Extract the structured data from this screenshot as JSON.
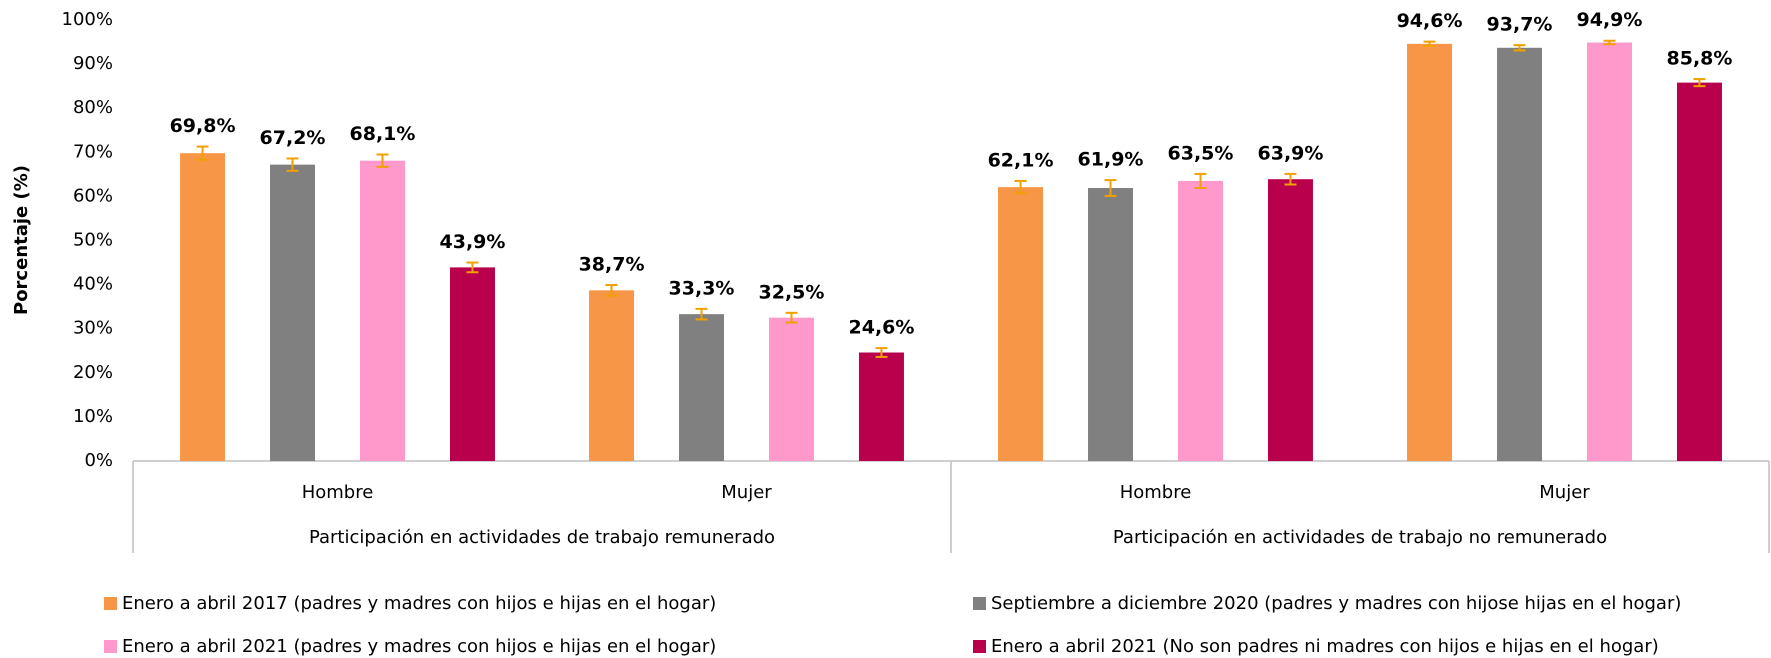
{
  "chart_data": {
    "type": "bar",
    "y_label": "Porcentaje (%)",
    "categories": [
      "Hombre",
      "Mujer",
      "Hombre",
      "Mujer"
    ],
    "groups": [
      "Participación en actividades de trabajo remunerado",
      "Participación en actividades de trabajo no remunerado"
    ],
    "series": [
      {
        "name": "Enero a abril 2017 (padres y madres con hijos e hijas en el hogar)",
        "color": "#f79646",
        "values": [
          69.8,
          38.7,
          62.1,
          94.6
        ],
        "value_labels": [
          "69,8%",
          "38,7%",
          "62,1%",
          "94,6%"
        ],
        "errors": [
          1.5,
          1.2,
          1.4,
          0.5
        ]
      },
      {
        "name": "Septiembre a diciembre 2020 (padres y madres con hijose hijas en el hogar)",
        "color": "#808080",
        "values": [
          67.2,
          33.3,
          61.9,
          93.7
        ],
        "value_labels": [
          "67,2%",
          "33,3%",
          "61,9%",
          "93,7%"
        ],
        "errors": [
          1.4,
          1.2,
          1.8,
          0.6
        ]
      },
      {
        "name": "Enero a abril 2021 (padres y madres con hijos e hijas en el hogar)",
        "color": "#ff99cc",
        "values": [
          68.1,
          32.5,
          63.5,
          94.9
        ],
        "value_labels": [
          "68,1%",
          "32,5%",
          "63,5%",
          "94,9%"
        ],
        "errors": [
          1.4,
          1.1,
          1.6,
          0.4
        ]
      },
      {
        "name": "Enero a abril 2021 (No son padres ni madres con hijos e hijas en el hogar)",
        "color": "#b8004c",
        "values": [
          43.9,
          24.6,
          63.9,
          85.8
        ],
        "value_labels": [
          "43,9%",
          "24,6%",
          "63,9%",
          "85,8%"
        ],
        "errors": [
          1.1,
          1.0,
          1.2,
          0.8
        ]
      }
    ],
    "error_color": "#f0a000",
    "ylim": [
      0,
      100
    ],
    "yticks": [
      {
        "value": 0,
        "label": "0%"
      },
      {
        "value": 10,
        "label": "10%"
      },
      {
        "value": 20,
        "label": "20%"
      },
      {
        "value": 30,
        "label": "30%"
      },
      {
        "value": 40,
        "label": "40%"
      },
      {
        "value": 50,
        "label": "50%"
      },
      {
        "value": 60,
        "label": "60%"
      },
      {
        "value": 70,
        "label": "70%"
      },
      {
        "value": 80,
        "label": "80%"
      },
      {
        "value": 90,
        "label": "90%"
      },
      {
        "value": 100,
        "label": "100%"
      }
    ],
    "grid": false,
    "legend": "bottom"
  }
}
